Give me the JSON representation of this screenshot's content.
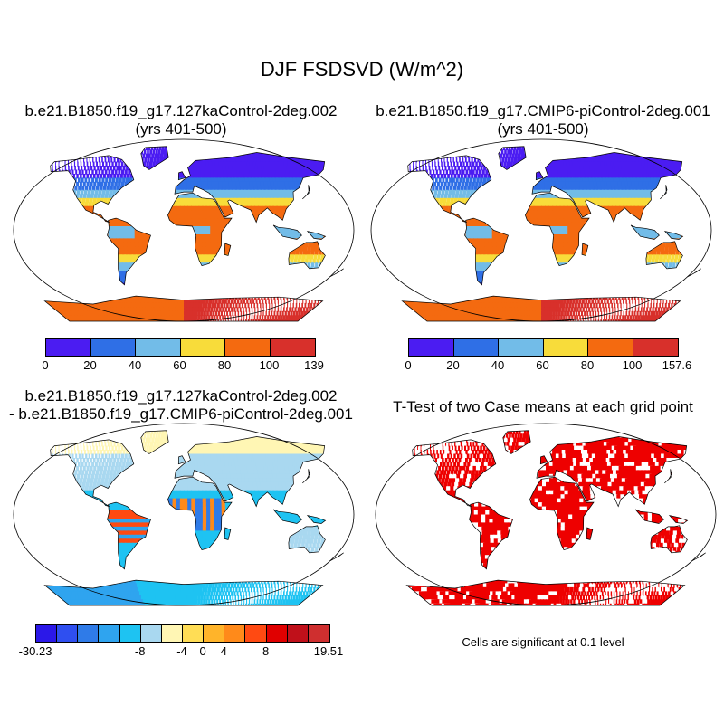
{
  "title": "DJF FSDSVD (W/m^2)",
  "colors": {
    "ocean": "#ffffff",
    "outline": "#000000",
    "abs_palette": [
      "#4b1cf2",
      "#2f6fe6",
      "#72bce8",
      "#f8dc3a",
      "#f46a10",
      "#d8302b"
    ],
    "diff_palette": [
      "#2b18e8",
      "#2f4ff0",
      "#2f7be8",
      "#2fa4ef",
      "#1ec3f2",
      "#a9d8f0",
      "#fff6b4",
      "#ffdd55",
      "#ffb42a",
      "#ff8a1a",
      "#ff4a12",
      "#e00000",
      "#c0101a",
      "#cf2f2f"
    ],
    "sig": "#ee0000"
  },
  "panels": {
    "p1": {
      "title_line1": "b.e21.B1850.f19_g17.127kaControl-2deg.002",
      "title_line2": "(yrs 401-500)",
      "colorbar_ticks": [
        "0",
        "20",
        "40",
        "60",
        "80",
        "100",
        "139"
      ]
    },
    "p2": {
      "title_line1": "b.e21.B1850.f19_g17.CMIP6-piControl-2deg.001",
      "title_line2": "(yrs 401-500)",
      "colorbar_ticks": [
        "0",
        "20",
        "40",
        "60",
        "80",
        "100",
        "157.6"
      ]
    },
    "p3": {
      "title_line1": "b.e21.B1850.f19_g17.127kaControl-2deg.002",
      "title_line2": "- b.e21.B1850.f19_g17.CMIP6-piControl-2deg.001",
      "colorbar_ticks": [
        "-30.23",
        "-8",
        "-4",
        "0",
        "4",
        "8",
        "19.51"
      ]
    },
    "p4": {
      "title_line1": "T-Test of two Case means at each grid point",
      "note": "Cells are significant at 0.1 level"
    }
  },
  "chart_data": [
    {
      "type": "heatmap",
      "title": "b.e21.B1850.f19_g17.127kaControl-2deg.002 (yrs 401-500)",
      "projection": "Robinson",
      "colorbar": {
        "ticks": [
          "0",
          "20",
          "40",
          "60",
          "80",
          "100",
          "139"
        ],
        "min": 0,
        "max": 139,
        "levels": [
          20,
          40,
          60,
          80,
          100
        ]
      }
    },
    {
      "type": "heatmap",
      "title": "b.e21.B1850.f19_g17.CMIP6-piControl-2deg.001 (yrs 401-500)",
      "projection": "Robinson",
      "colorbar": {
        "ticks": [
          "0",
          "20",
          "40",
          "60",
          "80",
          "100",
          "157.6"
        ],
        "min": 0,
        "max": 157.6,
        "levels": [
          20,
          40,
          60,
          80,
          100
        ]
      }
    },
    {
      "type": "heatmap",
      "title": "b.e21.B1850.f19_g17.127kaControl-2deg.002 - b.e21.B1850.f19_g17.CMIP6-piControl-2deg.001",
      "projection": "Robinson",
      "colorbar": {
        "ticks": [
          "-30.23",
          "-8",
          "-4",
          "0",
          "4",
          "8",
          "19.51"
        ],
        "min": -30.23,
        "max": 19.51
      }
    },
    {
      "type": "heatmap",
      "title": "T-Test of two Case means at each grid point",
      "projection": "Robinson",
      "note": "Cells are significant at 0.1 level"
    }
  ]
}
